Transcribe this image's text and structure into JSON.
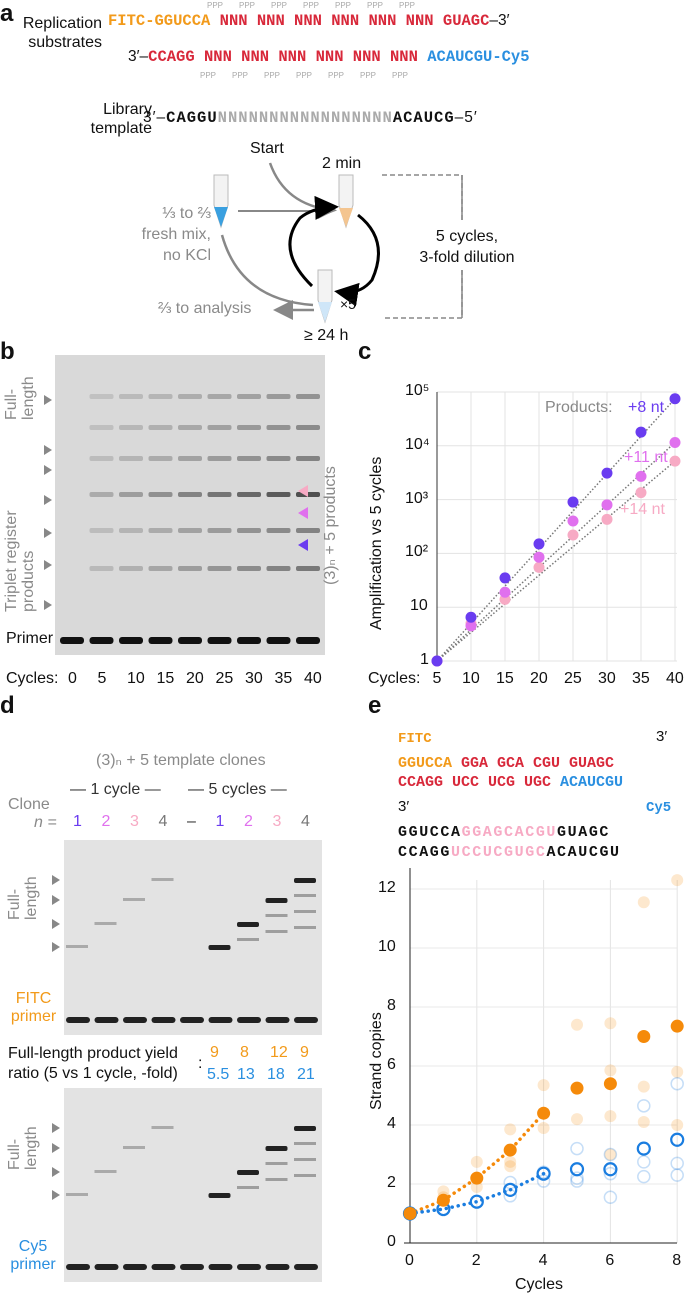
{
  "colors": {
    "fitc": "#f29a1a",
    "red": "#d8283a",
    "cy5": "#2a8fe0",
    "gray": "#9a9a9a",
    "purple": "#6a3cf0",
    "magenta": "#e070ee",
    "pink": "#f7aac4",
    "orange": "#f58a0a",
    "blue": "#1a7de0"
  },
  "panel_a": {
    "label": "a",
    "substrates_label": "Replication substrates",
    "row1": {
      "fitc": "FITC-GGUCCA",
      "nnn": "NNN NNN NNN NNN NNN NNN ",
      "tail": "GUAGC",
      "end": "–3′"
    },
    "row2": {
      "start": "3′–",
      "head": "CCAGG ",
      "nnn": "NNN NNN NNN NNN NNN NNN ",
      "cy5": "ACAUCGU-Cy5"
    },
    "triphosphate": "PPP",
    "template_label": "Library template",
    "template": {
      "start": "3′–",
      "head": "CAGGU",
      "nnn": "NNNNNNNNNNNNNNNNN",
      "tail": "ACAUCG",
      "end": "–5′"
    },
    "scheme": {
      "start": "Start",
      "time": "2 min",
      "fresh": [
        "⅓ to ⅔",
        "fresh mix,",
        "no KCl"
      ],
      "analysis": "⅔ to analysis",
      "times": "×5",
      "hold": "≥ 24 h",
      "cycles": [
        "5 cycles,",
        "3-fold dilution"
      ]
    }
  },
  "panel_b": {
    "label": "b",
    "full_length": "Full-length",
    "triplet": "Triplet register products",
    "products": "(3)ₙ + 5 products",
    "primer": "Primer",
    "cycles_label": "Cycles:",
    "cycles": [
      "0",
      "5",
      "10",
      "15",
      "20",
      "25",
      "30",
      "35",
      "40"
    ]
  },
  "chart_data": [
    {
      "type": "scatter",
      "panel": "c",
      "ylabel": "Amplification vs 5 cycles",
      "xlabel": "Cycles:",
      "x": [
        5,
        10,
        15,
        20,
        25,
        30,
        35,
        40
      ],
      "xticks": [
        "5",
        "10",
        "15",
        "20",
        "25",
        "30",
        "35",
        "40"
      ],
      "yscale": "log",
      "ylim": [
        1,
        100000
      ],
      "yticks": [
        "1",
        "10",
        "10²",
        "10³",
        "10⁴",
        "10⁵"
      ],
      "grid": true,
      "legend_prefix": "Products:",
      "series": [
        {
          "name": "+8 nt",
          "color": "#6a3cf0",
          "values": [
            1,
            6.5,
            35,
            150,
            900,
            3100,
            18000,
            75000
          ]
        },
        {
          "name": "+11 nt",
          "color": "#e070ee",
          "values": [
            1,
            4.5,
            19,
            85,
            400,
            800,
            2700,
            11500
          ]
        },
        {
          "name": "+14 nt",
          "color": "#f7aac4",
          "values": [
            1,
            5,
            14,
            55,
            220,
            430,
            1350,
            5200
          ]
        }
      ]
    },
    {
      "type": "scatter",
      "panel": "e",
      "xlabel": "Cycles",
      "ylabel": "Strand copies",
      "xlim": [
        0,
        8
      ],
      "ylim": [
        0,
        12.5
      ],
      "xticks": [
        "0",
        "2",
        "4",
        "6",
        "8"
      ],
      "yticks": [
        "0",
        "2",
        "4",
        "6",
        "8",
        "10",
        "12"
      ],
      "grid": true,
      "series": [
        {
          "strand": "FITC",
          "color": "#f58a0a",
          "filled": true,
          "x": [
            0,
            1,
            2,
            3,
            4,
            5,
            6,
            7,
            8
          ],
          "values": [
            1,
            1.45,
            2.2,
            3.15,
            4.4,
            5.25,
            5.4,
            7.0,
            7.35
          ],
          "replicates": [
            [
              1,
              1.75
            ],
            [
              1,
              1.55
            ],
            [
              2,
              2.75
            ],
            [
              2,
              1.9
            ],
            [
              3,
              3.85
            ],
            [
              3,
              2.75
            ],
            [
              3,
              2.6
            ],
            [
              4,
              5.35
            ],
            [
              4,
              3.9
            ],
            [
              5,
              7.4
            ],
            [
              5,
              4.2
            ],
            [
              6,
              7.45
            ],
            [
              6,
              5.85
            ],
            [
              6,
              4.3
            ],
            [
              6,
              3.0
            ],
            [
              7,
              11.55
            ],
            [
              7,
              5.3
            ],
            [
              7,
              4.1
            ],
            [
              8,
              12.3
            ],
            [
              8,
              5.8
            ],
            [
              8,
              4.0
            ]
          ]
        },
        {
          "strand": "Cy5",
          "color": "#1a7de0",
          "filled": false,
          "x": [
            0,
            1,
            2,
            3,
            4,
            5,
            6,
            7,
            8
          ],
          "values": [
            1,
            1.15,
            1.4,
            1.8,
            2.35,
            2.5,
            2.5,
            3.2,
            3.5
          ],
          "replicates": [
            [
              3,
              2.05
            ],
            [
              3,
              1.6
            ],
            [
              4,
              2.4
            ],
            [
              4,
              2.1
            ],
            [
              5,
              3.2
            ],
            [
              5,
              2.2
            ],
            [
              5,
              2.1
            ],
            [
              6,
              3.0
            ],
            [
              6,
              2.35
            ],
            [
              6,
              1.55
            ],
            [
              7,
              4.65
            ],
            [
              7,
              2.75
            ],
            [
              7,
              2.25
            ],
            [
              8,
              5.4
            ],
            [
              8,
              2.7
            ],
            [
              8,
              2.3
            ]
          ]
        }
      ]
    }
  ],
  "panel_d": {
    "label": "d",
    "title": "(3)ₙ + 5 template clones",
    "one_cycle": "1 cycle",
    "five_cycles": "5 cycles",
    "clone": "Clone",
    "n": "n =",
    "lanes": [
      "1",
      "2",
      "3",
      "4",
      "–",
      "1",
      "2",
      "3",
      "4"
    ],
    "full_length": "Full-length",
    "fitc_primer": "FITC primer",
    "cy5_primer": "Cy5 primer",
    "yield_label": [
      "Full-length product yield",
      "ratio (5 vs 1 cycle, -fold)"
    ],
    "fitc_ratios": [
      "9",
      "8",
      "12",
      "9"
    ],
    "cy5_ratios": [
      "5.5",
      "13",
      "18",
      "21"
    ]
  },
  "panel_e": {
    "label": "e",
    "fitc": "FITC",
    "cy5": "Cy5",
    "three": "3′",
    "top": {
      "a": "GGUCCA",
      "b": "GGA GCA CGU GUAGC"
    },
    "bottom": {
      "a": "CCAGG UCC UCG UGC ",
      "b": "ACAUCGU"
    },
    "seq1": {
      "a": "GGUCCA",
      "b": "GGAGCACGU",
      "c": "GUAGC"
    },
    "seq2": {
      "a": "CCAGG",
      "b": "UCCUCGUGC",
      "c": "ACAUCGU"
    }
  }
}
